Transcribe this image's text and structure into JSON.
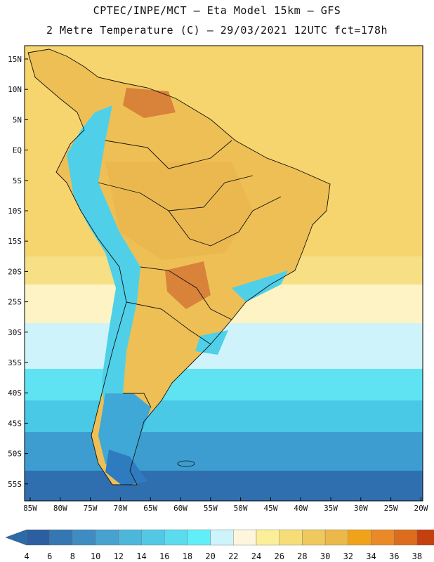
{
  "header": {
    "line1": "CPTEC/INPE/MCT –  Eta Model 15km – GFS",
    "line2": "2 Metre Temperature (C) – 29/03/2021 12UTC fct=178h"
  },
  "map": {
    "lat_labels": [
      "15N",
      "10N",
      "5N",
      "EQ",
      "5S",
      "10S",
      "15S",
      "20S",
      "25S",
      "30S",
      "35S",
      "40S",
      "45S",
      "50S",
      "55S"
    ],
    "lon_labels": [
      "85W",
      "80W",
      "75W",
      "70W",
      "65W",
      "60W",
      "55W",
      "50W",
      "45W",
      "40W",
      "35W",
      "30W",
      "25W",
      "20W"
    ],
    "bands": [
      {
        "color": "#f7d56e"
      },
      {
        "color": "#f6df85"
      },
      {
        "color": "#fdf3c4"
      },
      {
        "color": "#cff3fb"
      },
      {
        "color": "#5fe3f3"
      },
      {
        "color": "#49c9e6"
      },
      {
        "color": "#3d9dd0"
      },
      {
        "color": "#2f6fb0"
      }
    ],
    "land": {
      "north": "#e9b34c",
      "interior": "#eebf55",
      "hot": "#d9823a",
      "andes": "#4fd0e8",
      "patagonia": "#3fa8d6",
      "south_tip": "#2e7cbf"
    }
  },
  "colorbar": {
    "labels": [
      "4",
      "6",
      "8",
      "10",
      "12",
      "14",
      "16",
      "18",
      "20",
      "22",
      "24",
      "26",
      "28",
      "30",
      "32",
      "34",
      "36",
      "38"
    ],
    "colors": [
      "#2c5fa2",
      "#3577b3",
      "#3e8cc2",
      "#48a2cf",
      "#4cb6db",
      "#53c8e5",
      "#5adbee",
      "#62eef8",
      "#cdf3fb",
      "#fdf6dc",
      "#fbef98",
      "#f6dd77",
      "#efc95d",
      "#ebb84a",
      "#f0a31a",
      "#e98928",
      "#dc6d1f",
      "#c4400e"
    ],
    "end_low": "#2c6aa8",
    "end_high": "#c54411"
  }
}
